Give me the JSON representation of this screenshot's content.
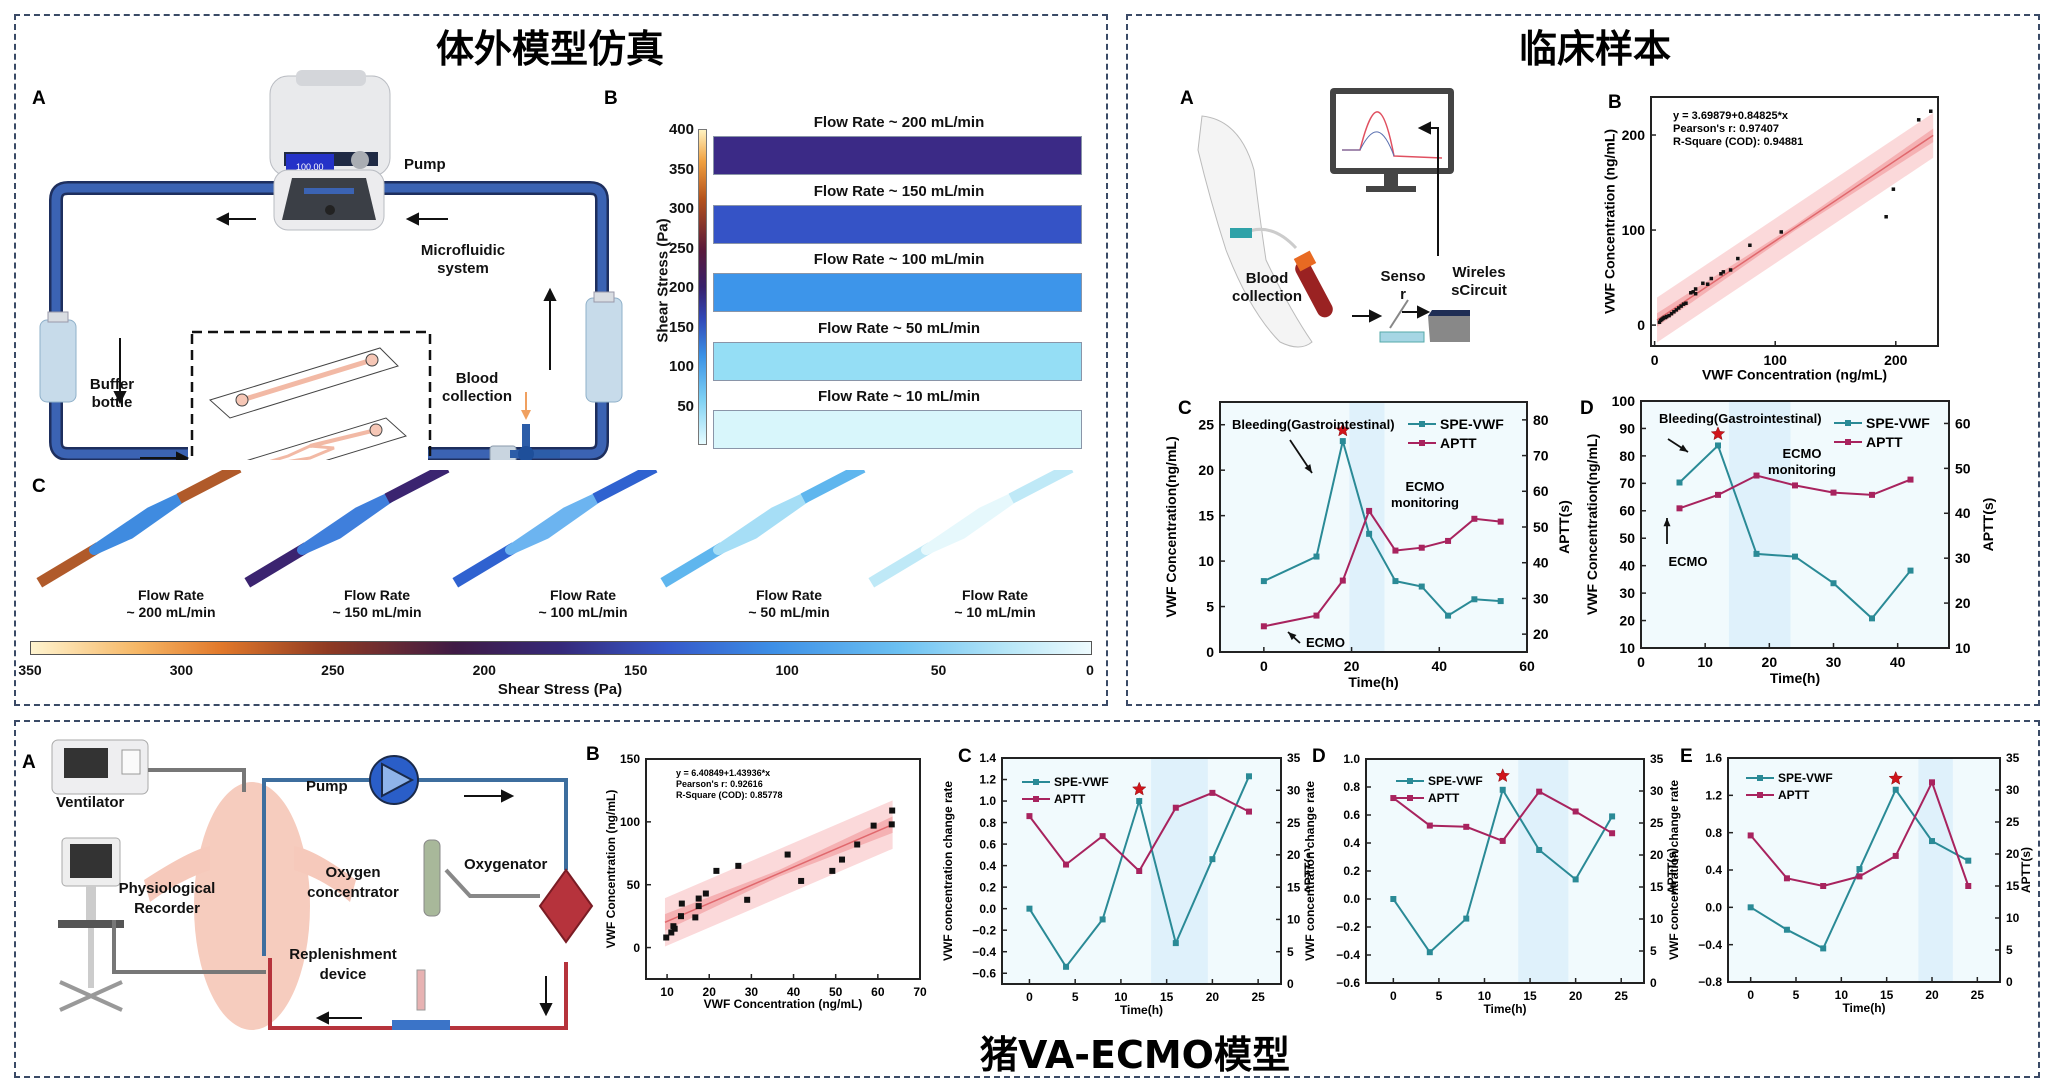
{
  "sections": {
    "in_vitro": {
      "title": "体外模型仿真"
    },
    "clinical": {
      "title": "临床样本"
    },
    "pig": {
      "title": "猪VA-ECMO模型"
    }
  },
  "in_vitro": {
    "panel_a": {
      "label": "A",
      "pump_label": "Pump",
      "pump_display": "100.00",
      "microfluidic_label": "Microfluidic system",
      "buffer_label": "Buffer bottle",
      "blood_label": "Blood collection"
    },
    "panel_b": {
      "label": "B",
      "colorbar_label": "Shear Stress (Pa)",
      "colorbar_ticks": [
        "400",
        "350",
        "300",
        "250",
        "200",
        "150",
        "100",
        "50"
      ],
      "strips": [
        {
          "title": "Flow Rate ~ 200 mL/min",
          "color": "#3b2a86"
        },
        {
          "title": "Flow Rate ~ 150 mL/min",
          "color": "#3553c6"
        },
        {
          "title": "Flow Rate ~ 100 mL/min",
          "color": "#3d95ea"
        },
        {
          "title": "Flow Rate ~ 50 mL/min",
          "color": "#95def5"
        },
        {
          "title": "Flow Rate ~ 10 mL/min",
          "color": "#d8f6fb"
        }
      ]
    },
    "panel_c": {
      "label": "C",
      "channels": [
        {
          "line1": "Flow Rate",
          "line2": "~ 200 mL/min",
          "end": "#b05a2a",
          "body": "#3f8be0"
        },
        {
          "line1": "Flow Rate",
          "line2": "~ 150 mL/min",
          "end": "#3b2470",
          "body": "#3f7fdc"
        },
        {
          "line1": "Flow Rate",
          "line2": "~ 100 mL/min",
          "end": "#2f62d0",
          "body": "#6cb4f0"
        },
        {
          "line1": "Flow Rate",
          "line2": "~ 50 mL/min",
          "end": "#5fb6ee",
          "body": "#a6def6"
        },
        {
          "line1": "Flow Rate",
          "line2": "~ 10 mL/min",
          "end": "#bfe9f7",
          "body": "#e6f8fc"
        }
      ],
      "colorbar_ticks": [
        "350",
        "300",
        "250",
        "200",
        "150",
        "100",
        "50",
        "0"
      ],
      "colorbar_label": "Shear Stress (Pa)"
    }
  },
  "clinical": {
    "panel_a": {
      "label": "A",
      "blood_label": "Blood collection",
      "sensor_label": "Senso r",
      "circuit_label_1": "Wireles",
      "circuit_label_2": "sCircuit"
    }
  },
  "pig": {
    "panel_a": {
      "label": "A",
      "ventilator": "Ventilator",
      "pump": "Pump",
      "oxygen_1": "Oxygen",
      "oxygen_2": "concentrator",
      "oxygenator": "Oxygenator",
      "recorder_1": "Physiological",
      "recorder_2": "Recorder",
      "replenish_1": "Replenishment",
      "replenish_2": "device"
    }
  },
  "colors": {
    "spe_vwf": "#2a8a96",
    "aptt": "#a8235e",
    "star": "#d0141b",
    "fit_band_outer": "#fbd9da",
    "fit_band_inner": "#f3a3a6",
    "fit_line": "#e0686d",
    "monitor_band": "#dff1fb",
    "plot_bg": "#f1fafd"
  },
  "chart_data": [
    {
      "id": "clinical-b",
      "panel_label": "B",
      "type": "scatter",
      "title": "",
      "xlabel": "VWF Concentration (ng/mL)",
      "ylabel": "VWF Concentration (ng/mL)",
      "xlim": [
        -3,
        235
      ],
      "ylim": [
        -22,
        240
      ],
      "xticks": [
        0,
        100,
        200
      ],
      "yticks": [
        0,
        100,
        200
      ],
      "annotations": [
        "y = 3.69879+0.84825*x",
        "Pearson's r: 0.97407",
        "R-Square (COD): 0.94881"
      ],
      "fit": {
        "intercept": 3.69879,
        "slope": 0.84825,
        "x_range": [
          2,
          231
        ]
      },
      "points": [
        [
          4,
          3
        ],
        [
          5,
          5
        ],
        [
          6,
          6
        ],
        [
          7,
          7
        ],
        [
          8,
          8
        ],
        [
          9,
          8
        ],
        [
          10,
          9
        ],
        [
          12,
          10
        ],
        [
          14,
          12
        ],
        [
          16,
          14
        ],
        [
          18,
          16
        ],
        [
          20,
          18
        ],
        [
          22,
          20
        ],
        [
          24,
          22
        ],
        [
          26,
          23
        ],
        [
          30,
          34
        ],
        [
          32,
          35
        ],
        [
          34,
          33
        ],
        [
          34,
          38
        ],
        [
          40,
          44
        ],
        [
          44,
          43
        ],
        [
          47,
          49
        ],
        [
          55,
          54
        ],
        [
          57,
          56
        ],
        [
          63,
          58
        ],
        [
          69,
          70
        ],
        [
          79,
          84
        ],
        [
          105,
          98
        ],
        [
          192,
          114
        ],
        [
          198,
          143
        ],
        [
          219,
          216
        ],
        [
          229,
          225
        ]
      ]
    },
    {
      "id": "clinical-c",
      "panel_label": "C",
      "type": "line",
      "xlabel": "Time(h)",
      "ylabel": "VWF Concentration(ng/mL)",
      "y2label": "APTT(s)",
      "xlim": [
        -10,
        60
      ],
      "ylim": [
        0,
        27.5
      ],
      "y2lim": [
        15,
        85
      ],
      "xticks": [
        0,
        20,
        40,
        60
      ],
      "yticks": [
        0,
        5,
        10,
        15,
        20,
        25
      ],
      "y2ticks": [
        20,
        30,
        40,
        50,
        60,
        70,
        80
      ],
      "shaded_region": [
        19.5,
        27.5
      ],
      "star_at": {
        "x": 18,
        "y": 24.4
      },
      "legend": [
        "SPE-VWF",
        "APTT"
      ],
      "legend_position": "top-right",
      "annotations": [
        {
          "text": "Bleeding(Gastrointestinal)"
        },
        {
          "text": "ECMO monitoring"
        },
        {
          "text": "ECMO"
        }
      ],
      "x": [
        0,
        12,
        18,
        24,
        30,
        36,
        42,
        48,
        54
      ],
      "series": [
        {
          "name": "SPE-VWF",
          "axis": "left",
          "values": [
            7.8,
            10.5,
            23.2,
            13.0,
            7.8,
            7.2,
            4.0,
            5.8,
            5.6
          ]
        },
        {
          "name": "APTT",
          "axis": "right",
          "values": [
            22.2,
            25.2,
            35.0,
            54.5,
            43.4,
            44.2,
            46.1,
            52.3,
            51.5
          ]
        }
      ]
    },
    {
      "id": "clinical-d",
      "panel_label": "D",
      "type": "line",
      "xlabel": "Time(h)",
      "ylabel": "VWF Concentration(ng/mL)",
      "y2label": "APTT(s)",
      "xlim": [
        0,
        48
      ],
      "ylim": [
        10,
        100
      ],
      "y2lim": [
        10,
        65
      ],
      "xticks": [
        0,
        10,
        20,
        30,
        40
      ],
      "yticks": [
        10,
        20,
        30,
        40,
        50,
        60,
        70,
        80,
        90,
        100
      ],
      "y2ticks": [
        10,
        20,
        30,
        40,
        50,
        60
      ],
      "shaded_region": [
        13.7,
        23.3
      ],
      "star_at": {
        "x": 12,
        "y": 88
      },
      "legend": [
        "SPE-VWF",
        "APTT"
      ],
      "legend_position": "top-right",
      "annotations": [
        {
          "text": "Bleeding(Gastrointestinal)"
        },
        {
          "text": "ECMO monitoring"
        },
        {
          "text": "ECMO"
        }
      ],
      "x": [
        6,
        12,
        18,
        24,
        30,
        36,
        42
      ],
      "series": [
        {
          "name": "SPE-VWF",
          "axis": "left",
          "values": [
            70.3,
            83.8,
            44.3,
            43.3,
            33.6,
            20.8,
            38.2
          ]
        },
        {
          "name": "APTT",
          "axis": "right",
          "values": [
            41.1,
            44.1,
            48.4,
            46.2,
            44.6,
            44.1,
            47.5
          ]
        }
      ]
    },
    {
      "id": "pig-b",
      "panel_label": "B",
      "type": "scatter",
      "xlabel": "VWF Concentration (ng/mL)",
      "ylabel": "VWF Concentration (ng/mL)",
      "xlim": [
        5,
        70
      ],
      "ylim": [
        -25,
        150
      ],
      "xticks": [
        10,
        20,
        30,
        40,
        50,
        60,
        70
      ],
      "yticks": [
        0,
        50,
        100,
        150
      ],
      "annotations": [
        "y = 6.40849+1.43936*x",
        "Pearson's r: 0.92616",
        "R-Square (COD): 0.85778"
      ],
      "fit": {
        "intercept": 6.40849,
        "slope": 1.43936,
        "x_range": [
          9.5,
          63.5
        ]
      },
      "points": [
        [
          9.8,
          8
        ],
        [
          11,
          12
        ],
        [
          11.5,
          17
        ],
        [
          11.8,
          15
        ],
        [
          13.3,
          25
        ],
        [
          13.5,
          35
        ],
        [
          16.7,
          24
        ],
        [
          17.5,
          33
        ],
        [
          17.5,
          39
        ],
        [
          19.2,
          43
        ],
        [
          21.7,
          61
        ],
        [
          26.9,
          65
        ],
        [
          29,
          38
        ],
        [
          38.6,
          74
        ],
        [
          41.8,
          53
        ],
        [
          49.2,
          61
        ],
        [
          51.5,
          70
        ],
        [
          55.1,
          82
        ],
        [
          59,
          97
        ],
        [
          63.3,
          98
        ],
        [
          63.4,
          109
        ]
      ]
    },
    {
      "id": "pig-c",
      "panel_label": "C",
      "type": "line",
      "xlabel": "Time(h)",
      "ylabel": "VWF concentration change rate",
      "y2label": "APTT(s)",
      "xlim": [
        -3,
        27.5
      ],
      "ylim": [
        -0.7,
        1.4
      ],
      "y2lim": [
        0,
        35
      ],
      "xticks": [
        0,
        5,
        10,
        15,
        20,
        25
      ],
      "yticks": [
        -0.6,
        -0.4,
        -0.2,
        0.0,
        0.2,
        0.4,
        0.6,
        0.8,
        1.0,
        1.2,
        1.4
      ],
      "y2ticks": [
        0,
        5,
        10,
        15,
        20,
        25,
        30,
        35
      ],
      "shaded_region": [
        13.3,
        19.5
      ],
      "star_at": {
        "x": 12,
        "y": 1.11
      },
      "legend": [
        "SPE-VWF",
        "APTT"
      ],
      "legend_position": "top-left",
      "x": [
        0,
        4,
        8,
        12,
        16,
        20,
        24
      ],
      "series": [
        {
          "name": "SPE-VWF",
          "axis": "left",
          "values": [
            0.0,
            -0.54,
            -0.1,
            1.0,
            -0.32,
            0.46,
            1.23
          ]
        },
        {
          "name": "APTT",
          "axis": "right",
          "values": [
            26.0,
            18.5,
            22.9,
            17.5,
            27.3,
            29.6,
            26.7
          ]
        }
      ]
    },
    {
      "id": "pig-d",
      "panel_label": "D",
      "type": "line",
      "xlabel": "Time(h)",
      "ylabel": "VWF concentration change rate",
      "y2label": "APTT(s)",
      "xlim": [
        -3,
        27.5
      ],
      "ylim": [
        -0.6,
        1.0
      ],
      "y2lim": [
        0,
        35
      ],
      "xticks": [
        0,
        5,
        10,
        15,
        20,
        25
      ],
      "yticks": [
        -0.6,
        -0.4,
        -0.2,
        0.0,
        0.2,
        0.4,
        0.6,
        0.8,
        1.0
      ],
      "y2ticks": [
        0,
        5,
        10,
        15,
        20,
        25,
        30,
        35
      ],
      "shaded_region": [
        13.7,
        19.2
      ],
      "star_at": {
        "x": 12,
        "y": 0.88
      },
      "legend": [
        "SPE-VWF",
        "APTT"
      ],
      "legend_position": "top-left",
      "x": [
        0,
        4,
        8,
        12,
        16,
        20,
        24
      ],
      "series": [
        {
          "name": "SPE-VWF",
          "axis": "left",
          "values": [
            0.0,
            -0.38,
            -0.14,
            0.78,
            0.35,
            0.14,
            0.59
          ]
        },
        {
          "name": "APTT",
          "axis": "right",
          "values": [
            28.9,
            24.6,
            24.4,
            22.2,
            29.9,
            26.8,
            23.4
          ]
        }
      ]
    },
    {
      "id": "pig-e",
      "panel_label": "E",
      "type": "line",
      "xlabel": "Time(h)",
      "ylabel": "VWF concentration change rate",
      "y2label": "APTT(s)",
      "xlim": [
        -2.5,
        27.5
      ],
      "ylim": [
        -0.8,
        1.6
      ],
      "y2lim": [
        0,
        35
      ],
      "xticks": [
        0,
        5,
        10,
        15,
        20,
        25
      ],
      "yticks": [
        -0.8,
        -0.4,
        0.0,
        0.4,
        0.8,
        1.2,
        1.6
      ],
      "y2ticks": [
        0,
        5,
        10,
        15,
        20,
        25,
        30,
        35
      ],
      "shaded_region": [
        18.5,
        22.3
      ],
      "star_at": {
        "x": 16,
        "y": 1.38
      },
      "legend": [
        "SPE-VWF",
        "APTT"
      ],
      "legend_position": "top-left",
      "x": [
        0,
        4,
        8,
        12,
        16,
        20,
        24
      ],
      "series": [
        {
          "name": "SPE-VWF",
          "axis": "left",
          "values": [
            0.0,
            -0.24,
            -0.44,
            0.41,
            1.26,
            0.71,
            0.5
          ]
        },
        {
          "name": "APTT",
          "axis": "right",
          "values": [
            22.9,
            16.2,
            15.0,
            16.5,
            19.7,
            31.2,
            15.0
          ]
        }
      ]
    }
  ]
}
